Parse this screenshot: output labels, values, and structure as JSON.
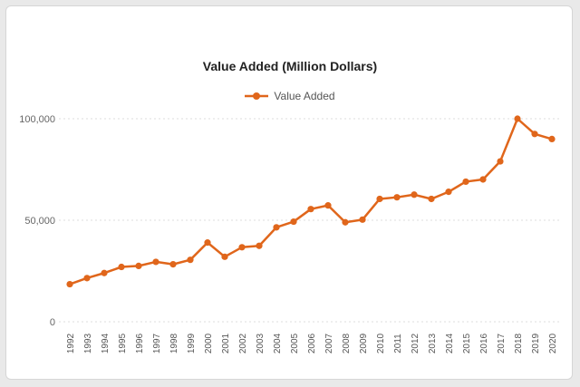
{
  "chart_data": {
    "type": "line",
    "title": "Value Added (Million Dollars)",
    "xlabel": "",
    "ylabel": "",
    "ylim": [
      0,
      100000
    ],
    "yticks": [
      0,
      50000,
      100000
    ],
    "ytick_labels": [
      "0",
      "50,000",
      "100,000"
    ],
    "grid": true,
    "legend_position": "top-center",
    "categories": [
      "1992",
      "1993",
      "1994",
      "1995",
      "1996",
      "1997",
      "1998",
      "1999",
      "2000",
      "2001",
      "2002",
      "2003",
      "2004",
      "2005",
      "2006",
      "2007",
      "2008",
      "2009",
      "2010",
      "2011",
      "2012",
      "2013",
      "2014",
      "2015",
      "2016",
      "2017",
      "2018",
      "2019",
      "2020"
    ],
    "series": [
      {
        "name": "Value Added",
        "color": "#e0661b",
        "values": [
          18500,
          21500,
          24000,
          27000,
          27500,
          29500,
          28300,
          30500,
          39000,
          32000,
          36700,
          37400,
          46500,
          49300,
          55500,
          57300,
          49000,
          50300,
          60500,
          61300,
          62600,
          60500,
          64000,
          69000,
          70100,
          79000,
          100000,
          92500,
          90000
        ]
      }
    ]
  }
}
